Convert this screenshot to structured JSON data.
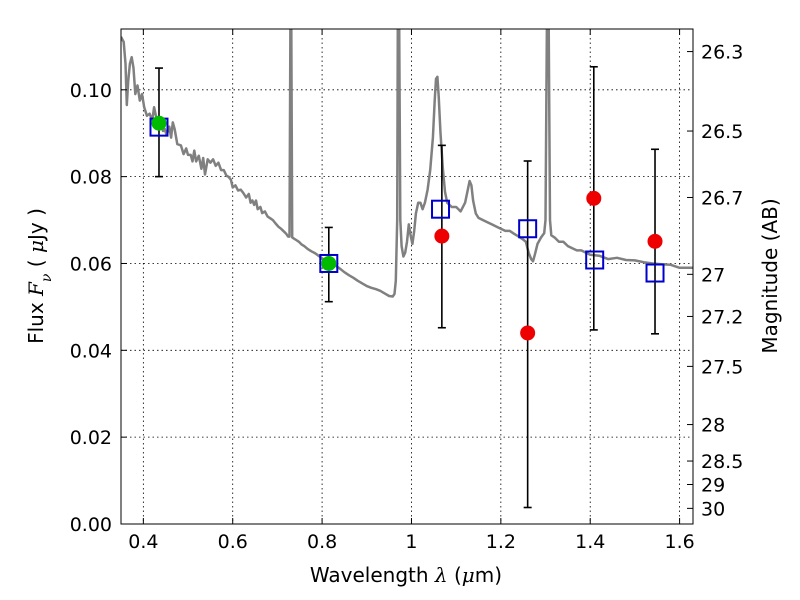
{
  "chart_data": {
    "type": "scatter",
    "title": "",
    "xlabel": "Wavelength",
    "xlabel_symbol": "λ",
    "xlabel_unit_open": "(",
    "xlabel_unit_mu": "μ",
    "xlabel_unit_close": "m)",
    "ylabel": "Flux",
    "ylabel_symbol": "F",
    "ylabel_subscript": "ν",
    "ylabel_unit_open": "(",
    "ylabel_unit_mu": "μ",
    "ylabel_unit_close": "Jy )",
    "y2label": "Magnitude (AB)",
    "xlim": [
      0.35,
      1.63
    ],
    "ylim": [
      0.0,
      0.114
    ],
    "grid": true,
    "x_ticks": [
      0.4,
      0.6,
      0.8,
      1.0,
      1.2,
      1.4,
      1.6
    ],
    "x_tick_labels": [
      "0.4",
      "0.6",
      "0.8",
      "1",
      "1.2",
      "1.4",
      "1.6"
    ],
    "y_ticks": [
      0.0,
      0.02,
      0.04,
      0.06,
      0.08,
      0.1
    ],
    "y_tick_labels": [
      "0.00",
      "0.02",
      "0.04",
      "0.06",
      "0.08",
      "0.10"
    ],
    "magnitude_ticks": [
      {
        "label": "26.3",
        "flux": 0.1088
      },
      {
        "label": "26.5",
        "flux": 0.0905
      },
      {
        "label": "26.7",
        "flux": 0.0752
      },
      {
        "label": "27",
        "flux": 0.0575
      },
      {
        "label": "27.2",
        "flux": 0.0478
      },
      {
        "label": "27.5",
        "flux": 0.0363
      },
      {
        "label": "28",
        "flux": 0.0229
      },
      {
        "label": "28.5",
        "flux": 0.0145
      },
      {
        "label": "29",
        "flux": 0.0091
      },
      {
        "label": "30",
        "flux": 0.0036
      }
    ],
    "series": [
      {
        "name": "model spectrum",
        "kind": "line",
        "color": "#808080",
        "points": [
          [
            0.35,
            0.1122
          ],
          [
            0.356,
            0.111
          ],
          [
            0.36,
            0.106
          ],
          [
            0.363,
            0.0965
          ],
          [
            0.366,
            0.102
          ],
          [
            0.37,
            0.106
          ],
          [
            0.374,
            0.1075
          ],
          [
            0.378,
            0.105
          ],
          [
            0.382,
            0.099
          ],
          [
            0.387,
            0.101
          ],
          [
            0.392,
            0.0975
          ],
          [
            0.397,
            0.099
          ],
          [
            0.402,
            0.096
          ],
          [
            0.408,
            0.094
          ],
          [
            0.414,
            0.0945
          ],
          [
            0.42,
            0.093
          ],
          [
            0.424,
            0.096
          ],
          [
            0.428,
            0.094
          ],
          [
            0.432,
            0.093
          ],
          [
            0.436,
            0.092
          ],
          [
            0.44,
            0.0935
          ],
          [
            0.444,
            0.0905
          ],
          [
            0.448,
            0.091
          ],
          [
            0.452,
            0.0895
          ],
          [
            0.458,
            0.0915
          ],
          [
            0.462,
            0.089
          ],
          [
            0.466,
            0.0925
          ],
          [
            0.47,
            0.091
          ],
          [
            0.476,
            0.0875
          ],
          [
            0.484,
            0.0872
          ],
          [
            0.49,
            0.0852
          ],
          [
            0.496,
            0.0865
          ],
          [
            0.5,
            0.085
          ],
          [
            0.506,
            0.085
          ],
          [
            0.51,
            0.0835
          ],
          [
            0.514,
            0.086
          ],
          [
            0.518,
            0.0835
          ],
          [
            0.524,
            0.0848
          ],
          [
            0.53,
            0.0818
          ],
          [
            0.534,
            0.0843
          ],
          [
            0.538,
            0.0805
          ],
          [
            0.544,
            0.084
          ],
          [
            0.55,
            0.0832
          ],
          [
            0.556,
            0.084
          ],
          [
            0.562,
            0.0825
          ],
          [
            0.568,
            0.0832
          ],
          [
            0.574,
            0.0815
          ],
          [
            0.58,
            0.0815
          ],
          [
            0.586,
            0.0802
          ],
          [
            0.59,
            0.08
          ],
          [
            0.596,
            0.0793
          ],
          [
            0.6,
            0.0775
          ],
          [
            0.606,
            0.078
          ],
          [
            0.612,
            0.0768
          ],
          [
            0.618,
            0.077
          ],
          [
            0.624,
            0.0762
          ],
          [
            0.63,
            0.0752
          ],
          [
            0.636,
            0.076
          ],
          [
            0.64,
            0.074
          ],
          [
            0.644,
            0.0745
          ],
          [
            0.648,
            0.0735
          ],
          [
            0.652,
            0.0745
          ],
          [
            0.656,
            0.0725
          ],
          [
            0.662,
            0.073
          ],
          [
            0.666,
            0.0716
          ],
          [
            0.672,
            0.072
          ],
          [
            0.678,
            0.0708
          ],
          [
            0.684,
            0.0704
          ],
          [
            0.69,
            0.07
          ],
          [
            0.696,
            0.0692
          ],
          [
            0.702,
            0.0685
          ],
          [
            0.708,
            0.068
          ],
          [
            0.714,
            0.0674
          ],
          [
            0.72,
            0.0668
          ],
          [
            0.724,
            0.0662
          ],
          [
            0.727,
            0.0662
          ],
          [
            0.729,
            0.115
          ],
          [
            0.731,
            0.115
          ],
          [
            0.733,
            0.066
          ],
          [
            0.736,
            0.0658
          ],
          [
            0.742,
            0.0654
          ],
          [
            0.748,
            0.065
          ],
          [
            0.754,
            0.0644
          ],
          [
            0.76,
            0.064
          ],
          [
            0.768,
            0.0633
          ],
          [
            0.776,
            0.0628
          ],
          [
            0.784,
            0.0624
          ],
          [
            0.792,
            0.0618
          ],
          [
            0.8,
            0.0612
          ],
          [
            0.81,
            0.0605
          ],
          [
            0.82,
            0.06
          ],
          [
            0.83,
            0.0595
          ],
          [
            0.84,
            0.0588
          ],
          [
            0.85,
            0.058
          ],
          [
            0.86,
            0.0573
          ],
          [
            0.87,
            0.0567
          ],
          [
            0.88,
            0.056
          ],
          [
            0.89,
            0.0554
          ],
          [
            0.9,
            0.0548
          ],
          [
            0.91,
            0.0544
          ],
          [
            0.92,
            0.0541
          ],
          [
            0.93,
            0.0537
          ],
          [
            0.94,
            0.0531
          ],
          [
            0.95,
            0.0525
          ],
          [
            0.958,
            0.0524
          ],
          [
            0.962,
            0.053
          ],
          [
            0.965,
            0.056
          ],
          [
            0.968,
            0.07
          ],
          [
            0.9695,
            0.115
          ],
          [
            0.9725,
            0.115
          ],
          [
            0.975,
            0.07
          ],
          [
            0.978,
            0.064
          ],
          [
            0.982,
            0.0616
          ],
          [
            0.986,
            0.0625
          ],
          [
            0.99,
            0.065
          ],
          [
            0.994,
            0.069
          ],
          [
            0.998,
            0.0665
          ],
          [
            1.002,
            0.0645
          ],
          [
            1.006,
            0.0675
          ],
          [
            1.01,
            0.0715
          ],
          [
            1.015,
            0.074
          ],
          [
            1.02,
            0.074
          ],
          [
            1.025,
            0.0725
          ],
          [
            1.03,
            0.074
          ],
          [
            1.036,
            0.077
          ],
          [
            1.042,
            0.0815
          ],
          [
            1.048,
            0.089
          ],
          [
            1.052,
            0.0975
          ],
          [
            1.055,
            0.1025
          ],
          [
            1.058,
            0.103
          ],
          [
            1.061,
            0.0985
          ],
          [
            1.065,
            0.09
          ],
          [
            1.07,
            0.082
          ],
          [
            1.075,
            0.0765
          ],
          [
            1.08,
            0.074
          ],
          [
            1.09,
            0.073
          ],
          [
            1.1,
            0.073
          ],
          [
            1.11,
            0.072
          ],
          [
            1.12,
            0.074
          ],
          [
            1.126,
            0.077
          ],
          [
            1.13,
            0.079
          ],
          [
            1.134,
            0.078
          ],
          [
            1.138,
            0.0745
          ],
          [
            1.144,
            0.0715
          ],
          [
            1.15,
            0.0705
          ],
          [
            1.16,
            0.07
          ],
          [
            1.17,
            0.0695
          ],
          [
            1.18,
            0.069
          ],
          [
            1.19,
            0.0685
          ],
          [
            1.2,
            0.068
          ],
          [
            1.21,
            0.0675
          ],
          [
            1.22,
            0.0675
          ],
          [
            1.23,
            0.0668
          ],
          [
            1.24,
            0.0662
          ],
          [
            1.25,
            0.0655
          ],
          [
            1.256,
            0.065
          ],
          [
            1.262,
            0.0625
          ],
          [
            1.268,
            0.061
          ],
          [
            1.272,
            0.0605
          ],
          [
            1.276,
            0.062
          ],
          [
            1.282,
            0.0645
          ],
          [
            1.29,
            0.066
          ],
          [
            1.297,
            0.067
          ],
          [
            1.3,
            0.07
          ],
          [
            1.303,
            0.115
          ],
          [
            1.307,
            0.115
          ],
          [
            1.31,
            0.07
          ],
          [
            1.313,
            0.0665
          ],
          [
            1.32,
            0.066
          ],
          [
            1.33,
            0.065
          ],
          [
            1.34,
            0.065
          ],
          [
            1.35,
            0.064
          ],
          [
            1.36,
            0.0635
          ],
          [
            1.37,
            0.063
          ],
          [
            1.38,
            0.063
          ],
          [
            1.39,
            0.0625
          ],
          [
            1.4,
            0.062
          ],
          [
            1.42,
            0.0618
          ],
          [
            1.44,
            0.061
          ],
          [
            1.46,
            0.0613
          ],
          [
            1.48,
            0.0608
          ],
          [
            1.5,
            0.0607
          ],
          [
            1.52,
            0.0603
          ],
          [
            1.54,
            0.06
          ],
          [
            1.56,
            0.0598
          ],
          [
            1.58,
            0.0597
          ],
          [
            1.6,
            0.059
          ],
          [
            1.62,
            0.059
          ],
          [
            1.63,
            0.059
          ]
        ]
      },
      {
        "name": "model photometry",
        "kind": "marker",
        "marker": "square",
        "color": "#0000cc",
        "points": [
          [
            0.435,
            0.0914
          ],
          [
            0.815,
            0.06
          ],
          [
            1.065,
            0.0725
          ],
          [
            1.26,
            0.068
          ],
          [
            1.41,
            0.0608
          ],
          [
            1.545,
            0.0578
          ]
        ]
      },
      {
        "name": "observed photometry",
        "kind": "marker",
        "marker": "circle",
        "points": [
          {
            "x": 0.435,
            "y": 0.0923,
            "yerr_low": 0.08,
            "yerr_high": 0.105,
            "color": "#00bb00"
          },
          {
            "x": 0.815,
            "y": 0.06,
            "yerr_low": 0.0512,
            "yerr_high": 0.0683,
            "color": "#00bb00"
          },
          {
            "x": 1.068,
            "y": 0.0663,
            "yerr_low": 0.0452,
            "yerr_high": 0.0872,
            "color": "#ee0000"
          },
          {
            "x": 1.26,
            "y": 0.044,
            "yerr_low": 0.0038,
            "yerr_high": 0.0836,
            "color": "#ee0000"
          },
          {
            "x": 1.408,
            "y": 0.075,
            "yerr_low": 0.0447,
            "yerr_high": 0.1053,
            "color": "#ee0000"
          },
          {
            "x": 1.545,
            "y": 0.0651,
            "yerr_low": 0.0438,
            "yerr_high": 0.0863,
            "color": "#ee0000"
          }
        ]
      }
    ]
  }
}
